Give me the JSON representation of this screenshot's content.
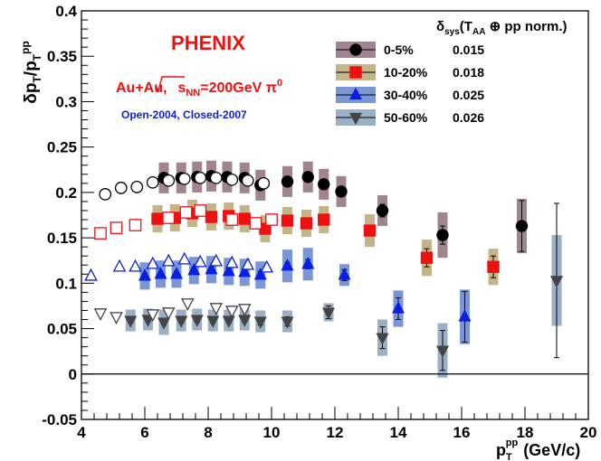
{
  "chart_data": {
    "type": "scatter",
    "title": "PHENIX",
    "collision_prefix": "Au+Au,",
    "collision_sqrt": "s",
    "collision_sub": "NN",
    "collision_suffix": "=200GeV π",
    "collision_sup": "0",
    "note": "Open-2004, Closed-2007",
    "xlabel_base": "p",
    "xlabel_sub": "T",
    "xlabel_sup": "pp",
    "xlabel_unit": "(GeV/c)",
    "ylabel_num": "δp",
    "ylabel_num_sub": "T",
    "ylabel_slash": "/p",
    "ylabel_den_sub": "T",
    "ylabel_den_sup": "pp",
    "xlim": [
      4,
      20
    ],
    "ylim": [
      -0.05,
      0.4
    ],
    "x_ticks": [
      4,
      6,
      8,
      10,
      12,
      14,
      16,
      18,
      20
    ],
    "y_ticks": [
      -0.05,
      0,
      0.05,
      0.1,
      0.15,
      0.2,
      0.25,
      0.3,
      0.35,
      0.4
    ],
    "y_tick_labels": [
      "-0.05",
      "0",
      "0.05",
      "0.1",
      "0.15",
      "0.2",
      "0.25",
      "0.3",
      "0.35",
      "0.4"
    ],
    "legend_header": "δsys(TAA ⊕ pp norm.)",
    "legend_header_parts": {
      "delta": "δ",
      "sys": "sys",
      "open": "(T",
      "aa": "AA",
      "rest": " ⊕ pp norm.)"
    },
    "legend_placement": "top-right",
    "series": [
      {
        "name": "0-5%",
        "sys_norm": "0.015",
        "color": "#000000",
        "box_color": "#a08590",
        "marker": "circle",
        "open_points": [
          [
            4.75,
            0.198
          ],
          [
            5.25,
            0.205
          ],
          [
            5.75,
            0.206
          ],
          [
            6.25,
            0.211
          ],
          [
            6.75,
            0.213
          ],
          [
            7.25,
            0.215
          ],
          [
            7.75,
            0.216
          ],
          [
            8.25,
            0.216
          ],
          [
            8.75,
            0.214
          ],
          [
            9.25,
            0.213
          ],
          [
            9.75,
            0.21
          ]
        ],
        "closed_points": [
          [
            6.6,
            0.216
          ],
          [
            7.15,
            0.216
          ],
          [
            7.65,
            0.217
          ],
          [
            8.1,
            0.218
          ],
          [
            8.6,
            0.217
          ],
          [
            9.15,
            0.216
          ],
          [
            9.65,
            0.208
          ],
          [
            10.5,
            0.212
          ],
          [
            11.15,
            0.217
          ],
          [
            11.65,
            0.209
          ],
          [
            12.2,
            0.201
          ],
          [
            13.5,
            0.18
          ],
          [
            15.4,
            0.153
          ],
          [
            17.9,
            0.163
          ]
        ],
        "closed_sys": [
          0.017,
          0.017,
          0.017,
          0.017,
          0.017,
          0.017,
          0.017,
          0.017,
          0.017,
          0.017,
          0.017,
          0.017,
          0.025,
          0.03
        ],
        "closed_stat": [
          0.003,
          0.003,
          0.003,
          0.003,
          0.003,
          0.003,
          0.003,
          0.004,
          0.004,
          0.005,
          0.005,
          0.007,
          0.01,
          0.028
        ]
      },
      {
        "name": "10-20%",
        "sys_norm": "0.018",
        "color": "#ee1111",
        "box_color": "#c4b48a",
        "marker": "square",
        "open_points": [
          [
            4.6,
            0.155
          ],
          [
            5.1,
            0.161
          ],
          [
            5.7,
            0.164
          ],
          [
            6.75,
            0.172
          ],
          [
            7.3,
            0.178
          ],
          [
            7.75,
            0.18
          ],
          [
            8.75,
            0.17
          ],
          [
            9.5,
            0.166
          ],
          [
            10.0,
            0.17
          ]
        ],
        "closed_points": [
          [
            6.4,
            0.171
          ],
          [
            6.95,
            0.172
          ],
          [
            7.5,
            0.177
          ],
          [
            8.1,
            0.173
          ],
          [
            8.65,
            0.174
          ],
          [
            9.15,
            0.171
          ],
          [
            9.8,
            0.16
          ],
          [
            10.5,
            0.169
          ],
          [
            11.1,
            0.166
          ],
          [
            11.65,
            0.17
          ],
          [
            13.1,
            0.158
          ],
          [
            14.9,
            0.128
          ],
          [
            17.0,
            0.118
          ]
        ],
        "closed_sys": [
          0.015,
          0.015,
          0.015,
          0.015,
          0.015,
          0.015,
          0.015,
          0.015,
          0.015,
          0.015,
          0.018,
          0.02,
          0.02
        ],
        "closed_stat": [
          0.003,
          0.003,
          0.003,
          0.003,
          0.003,
          0.003,
          0.004,
          0.004,
          0.004,
          0.005,
          0.006,
          0.01,
          0.012
        ]
      },
      {
        "name": "30-40%",
        "sys_norm": "0.025",
        "color": "#0a1fe0",
        "box_color": "#7a96d4",
        "marker": "triangle-up",
        "open_points": [
          [
            4.3,
            0.108
          ],
          [
            5.2,
            0.118
          ],
          [
            5.7,
            0.118
          ],
          [
            6.25,
            0.121
          ],
          [
            6.75,
            0.124
          ],
          [
            7.25,
            0.126
          ],
          [
            7.75,
            0.123
          ],
          [
            8.25,
            0.124
          ],
          [
            8.75,
            0.122
          ],
          [
            9.25,
            0.12
          ],
          [
            9.85,
            0.117
          ]
        ],
        "closed_points": [
          [
            6.0,
            0.108
          ],
          [
            6.5,
            0.11
          ],
          [
            7.0,
            0.11
          ],
          [
            7.55,
            0.114
          ],
          [
            8.1,
            0.115
          ],
          [
            8.65,
            0.113
          ],
          [
            9.15,
            0.112
          ],
          [
            9.65,
            0.109
          ],
          [
            10.5,
            0.119
          ],
          [
            11.15,
            0.121
          ],
          [
            12.3,
            0.109
          ],
          [
            14.0,
            0.072
          ],
          [
            16.1,
            0.063
          ]
        ],
        "closed_sys": [
          0.015,
          0.015,
          0.015,
          0.015,
          0.015,
          0.015,
          0.015,
          0.015,
          0.018,
          0.018,
          0.012,
          0.02,
          0.03
        ],
        "closed_stat": [
          0.003,
          0.003,
          0.003,
          0.003,
          0.003,
          0.003,
          0.003,
          0.004,
          0.004,
          0.005,
          0.006,
          0.012,
          0.028
        ]
      },
      {
        "name": "50-60%",
        "sys_norm": "0.026",
        "color": "#444444",
        "box_color": "#9bb0c4",
        "marker": "triangle-down",
        "open_points": [
          [
            4.6,
            0.067
          ],
          [
            5.1,
            0.063
          ],
          [
            6.25,
            0.066
          ],
          [
            6.75,
            0.068
          ],
          [
            7.35,
            0.078
          ],
          [
            8.25,
            0.073
          ],
          [
            8.75,
            0.07
          ],
          [
            9.15,
            0.072
          ]
        ],
        "closed_points": [
          [
            5.55,
            0.059
          ],
          [
            6.1,
            0.06
          ],
          [
            6.6,
            0.057
          ],
          [
            7.15,
            0.059
          ],
          [
            7.65,
            0.06
          ],
          [
            8.15,
            0.059
          ],
          [
            8.65,
            0.059
          ],
          [
            9.15,
            0.06
          ],
          [
            9.65,
            0.058
          ],
          [
            10.5,
            0.058
          ],
          [
            11.8,
            0.068
          ],
          [
            13.5,
            0.04
          ],
          [
            15.4,
            0.026
          ],
          [
            19.0,
            0.103
          ]
        ],
        "closed_sys": [
          0.012,
          0.012,
          0.014,
          0.012,
          0.012,
          0.012,
          0.012,
          0.012,
          0.012,
          0.012,
          0.01,
          0.02,
          0.03,
          0.05
        ],
        "closed_stat": [
          0.003,
          0.003,
          0.003,
          0.003,
          0.003,
          0.003,
          0.003,
          0.003,
          0.004,
          0.005,
          0.007,
          0.012,
          0.022,
          0.085
        ]
      }
    ]
  }
}
